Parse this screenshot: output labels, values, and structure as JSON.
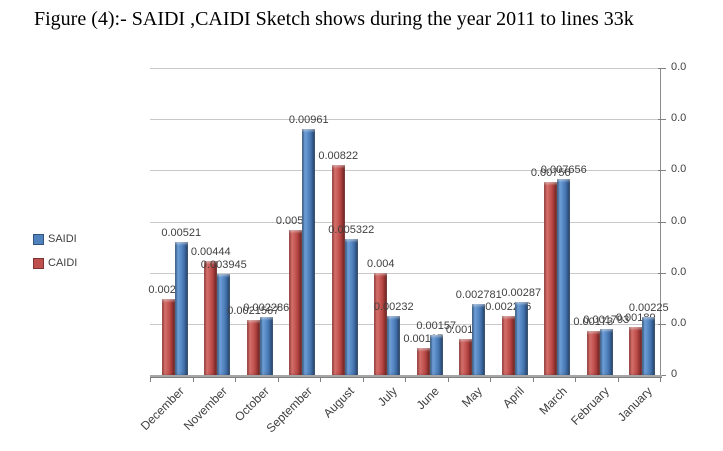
{
  "title": "Figure (4):-  SAIDI ,CAIDI Sketch shows during the year 2011 to lines 33k",
  "legend": [
    {
      "label": "SAIDI",
      "color": "#4F81BD"
    },
    {
      "label": "CAIDI",
      "color": "#C0504D"
    }
  ],
  "chart_data": {
    "type": "bar",
    "title": "Figure (4):-  SAIDI ,CAIDI Sketch shows during the year 2011 to lines 33k",
    "categories": [
      "December",
      "November",
      "October",
      "September",
      "August",
      "July",
      "June",
      "May",
      "April",
      "March",
      "February",
      "January"
    ],
    "series": [
      {
        "name": "CAIDI",
        "color": "#C0504D",
        "values": [
          0.00299,
          0.00444,
          0.0021567,
          0.00565,
          0.00822,
          0.004,
          0.00107,
          0.00139,
          0.002296,
          0.00756,
          0.00173,
          0.00189
        ],
        "labels": [
          "0.00299",
          "0.00444",
          "0.0021567",
          "0.00565",
          "0.00822",
          "0.004",
          "0.00107",
          "0.00139",
          "0.002296",
          "0.00756",
          "0.00173",
          "0.00189"
        ]
      },
      {
        "name": "SAIDI",
        "color": "#4F81BD",
        "values": [
          0.00521,
          0.003945,
          0.002286,
          0.00961,
          0.005322,
          0.00232,
          0.00157,
          0.002781,
          0.00287,
          0.007656,
          0.001793,
          0.00225
        ],
        "labels": [
          "0.00521",
          "0.003945",
          "0.002286",
          "0.00961",
          "0.005322",
          "0.00232",
          "0.00157",
          "0.002781",
          "0.00287",
          "0.007656",
          "0.001793",
          "0.00225"
        ]
      }
    ],
    "xlabel": "",
    "ylabel": "",
    "ylim": [
      0,
      0.012
    ],
    "grid": true,
    "legend_position": "left",
    "x_tick_rotation": -45,
    "y_axis": {
      "side": "right",
      "step": 0.002,
      "tick_label_truncated": "0.0",
      "origin_label": "0"
    }
  }
}
